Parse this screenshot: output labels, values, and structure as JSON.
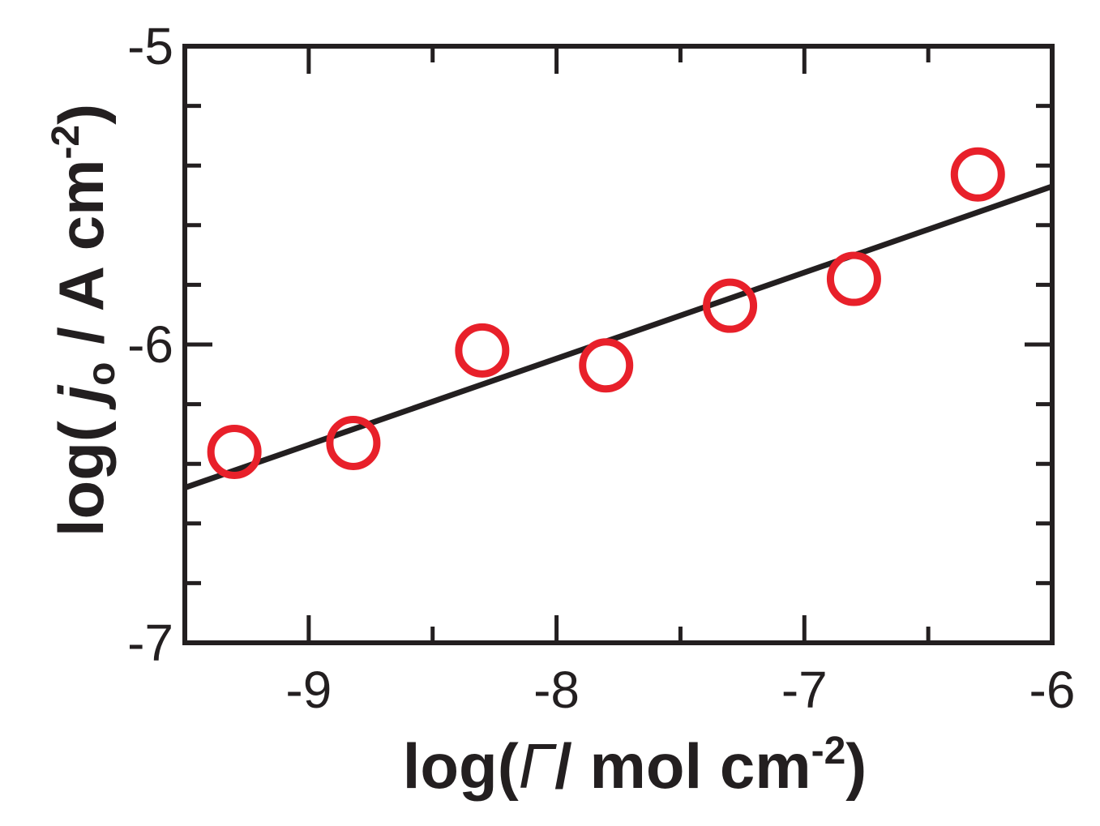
{
  "chart_data": {
    "type": "scatter",
    "xlabel": {
      "parts": [
        "log(",
        "Γ",
        "/ mol cm",
        "-2",
        ")"
      ]
    },
    "ylabel": {
      "parts": [
        "log(",
        " j",
        "o",
        " / A cm",
        "-2",
        ")"
      ]
    },
    "xlim": [
      -9.5,
      -6
    ],
    "ylim": [
      -7,
      -5
    ],
    "x_ticks": [
      -9,
      -8,
      -7,
      -6
    ],
    "x_tick_labels": [
      "-9",
      "-8",
      "-7",
      "-6"
    ],
    "y_ticks": [
      -7,
      -6,
      -5
    ],
    "y_tick_labels": [
      "-7",
      "-6",
      "-5"
    ],
    "x_minor_step": 0.5,
    "y_minor_step": 0.2,
    "series": [
      {
        "marker": "open-circle",
        "color": "#e8202a",
        "points": [
          {
            "x": -9.3,
            "y": -6.36
          },
          {
            "x": -8.82,
            "y": -6.33
          },
          {
            "x": -8.3,
            "y": -6.02
          },
          {
            "x": -7.8,
            "y": -6.07
          },
          {
            "x": -7.3,
            "y": -5.87
          },
          {
            "x": -6.8,
            "y": -5.78
          },
          {
            "x": -6.3,
            "y": -5.43
          }
        ]
      }
    ],
    "fit_line": {
      "color": "#231f20",
      "points": [
        {
          "x": -9.5,
          "y": -6.48
        },
        {
          "x": -6.0,
          "y": -5.47
        }
      ]
    },
    "grid": false,
    "legend": "none"
  }
}
